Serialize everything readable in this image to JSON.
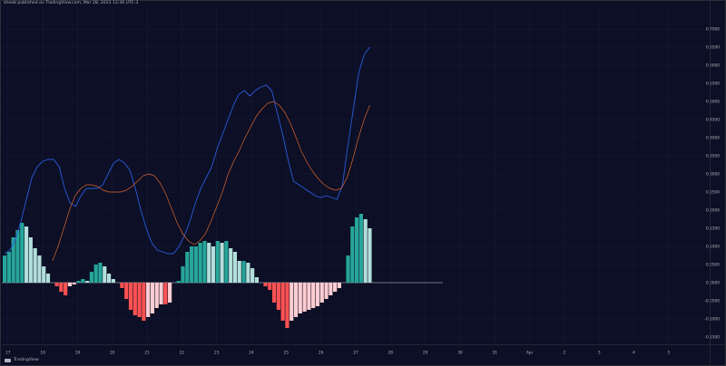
{
  "header": {
    "publisher_line": "sheeb published on TradingView.com, Mar 28, 2023 13:36 UTC-3"
  },
  "footer": {
    "brand": "TradingView"
  },
  "colors": {
    "background": "#0c0f25",
    "grid": "#161b3a",
    "macd_line": "#2a5bdc",
    "signal_line": "#e0652d",
    "hist_pos_strong": "#26a69a",
    "hist_pos_weak": "#b2dfdb",
    "hist_neg_strong": "#ff5252",
    "hist_neg_weak": "#ffcdd2",
    "axis_text": "#b2b5be"
  },
  "chart_data": {
    "type": "bar",
    "y_axis": {
      "range": [
        -0.17,
        0.76
      ],
      "ticks": [
        0.7,
        0.65,
        0.6,
        0.55,
        0.5,
        0.45,
        0.4,
        0.35,
        0.3,
        0.25,
        0.2,
        0.15,
        0.1,
        0.05,
        0.0,
        -0.05,
        -0.1,
        -0.15
      ],
      "tick_labels": [
        "0.7000",
        "0.6500",
        "0.6000",
        "0.5500",
        "0.5000",
        "0.4500",
        "0.4000",
        "0.3500",
        "0.3000",
        "0.2500",
        "0.2000",
        "0.1500",
        "0.1000",
        "0.0500",
        "0.0000",
        "-0.0500",
        "-0.1000",
        "-0.1500"
      ]
    },
    "x_axis": {
      "ticks": [
        {
          "pos": 0.77,
          "label": "17"
        },
        {
          "pos": 8.77,
          "label": "18"
        },
        {
          "pos": 16.77,
          "label": "19"
        },
        {
          "pos": 24.77,
          "label": "20"
        },
        {
          "pos": 32.77,
          "label": "21"
        },
        {
          "pos": 40.77,
          "label": "22"
        },
        {
          "pos": 48.77,
          "label": "23"
        },
        {
          "pos": 56.77,
          "label": "24"
        },
        {
          "pos": 64.77,
          "label": "25"
        },
        {
          "pos": 72.77,
          "label": "26"
        },
        {
          "pos": 80.77,
          "label": "27"
        },
        {
          "pos": 88.77,
          "label": "28"
        },
        {
          "pos": 96.77,
          "label": "29"
        },
        {
          "pos": 104.77,
          "label": "30"
        },
        {
          "pos": 112.77,
          "label": "31"
        },
        {
          "pos": 120.77,
          "label": "Apr"
        },
        {
          "pos": 128.77,
          "label": "2"
        },
        {
          "pos": 136.77,
          "label": "3"
        },
        {
          "pos": 144.77,
          "label": "4"
        },
        {
          "pos": 152.77,
          "label": "5"
        }
      ]
    },
    "histogram": [
      0.075,
      0.085,
      0.125,
      0.145,
      0.165,
      0.155,
      0.125,
      0.095,
      0.075,
      0.045,
      0.025,
      0.0,
      -0.01,
      -0.025,
      -0.035,
      -0.01,
      -0.005,
      0.005,
      0.01,
      0.005,
      0.03,
      0.05,
      0.055,
      0.045,
      0.025,
      0.01,
      0.0,
      -0.015,
      -0.045,
      -0.075,
      -0.09,
      -0.095,
      -0.105,
      -0.095,
      -0.085,
      -0.07,
      -0.06,
      -0.06,
      -0.055,
      0.0,
      0.005,
      0.045,
      0.085,
      0.1,
      0.1,
      0.11,
      0.115,
      0.11,
      0.1,
      0.115,
      0.11,
      0.115,
      0.095,
      0.085,
      0.06,
      0.06,
      0.055,
      0.04,
      0.015,
      0.0,
      -0.01,
      -0.02,
      -0.055,
      -0.075,
      -0.105,
      -0.125,
      -0.105,
      -0.095,
      -0.085,
      -0.08,
      -0.075,
      -0.07,
      -0.065,
      -0.055,
      -0.045,
      -0.035,
      -0.025,
      -0.015,
      0.0,
      0.075,
      0.155,
      0.18,
      0.19,
      0.175,
      0.15
    ],
    "series": [
      {
        "values": [
          0.08,
          0.09,
          0.12,
          0.17,
          0.23,
          0.29,
          0.32,
          0.335,
          0.34,
          0.34,
          0.32,
          0.26,
          0.22,
          0.21,
          0.24,
          0.26,
          0.26,
          0.26,
          0.27,
          0.3,
          0.33,
          0.34,
          0.33,
          0.31,
          0.26,
          0.2,
          0.15,
          0.11,
          0.09,
          0.085,
          0.08,
          0.08,
          0.1,
          0.13,
          0.17,
          0.22,
          0.26,
          0.29,
          0.32,
          0.37,
          0.41,
          0.45,
          0.49,
          0.52,
          0.53,
          0.515,
          0.53,
          0.54,
          0.545,
          0.53,
          0.47,
          0.41,
          0.34,
          0.28,
          0.27,
          0.26,
          0.25,
          0.24,
          0.235,
          0.24,
          0.235,
          0.23,
          0.27,
          0.38,
          0.48,
          0.58,
          0.63,
          0.65
        ]
      },
      {
        "values": [
          0.06,
          0.1,
          0.15,
          0.2,
          0.24,
          0.26,
          0.27,
          0.27,
          0.265,
          0.255,
          0.25,
          0.25,
          0.25,
          0.255,
          0.265,
          0.28,
          0.295,
          0.3,
          0.295,
          0.275,
          0.245,
          0.205,
          0.165,
          0.135,
          0.115,
          0.105,
          0.115,
          0.135,
          0.17,
          0.21,
          0.25,
          0.3,
          0.335,
          0.365,
          0.4,
          0.43,
          0.46,
          0.48,
          0.495,
          0.5,
          0.49,
          0.47,
          0.44,
          0.4,
          0.36,
          0.33,
          0.305,
          0.285,
          0.27,
          0.26,
          0.255,
          0.26,
          0.29,
          0.34,
          0.4,
          0.45,
          0.49
        ]
      }
    ]
  }
}
